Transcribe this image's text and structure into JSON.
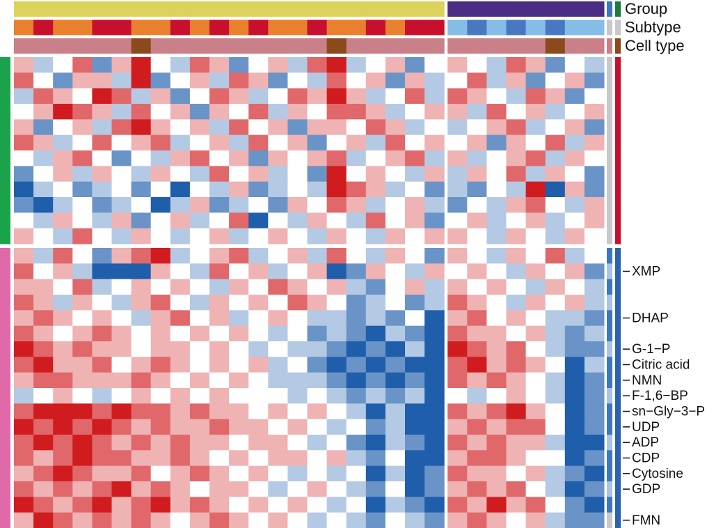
{
  "chart_data": {
    "type": "heatmap",
    "column_annotations": [
      {
        "name": "Group",
        "key_colors": [
          "#3b78c0",
          "#1b7a3e"
        ],
        "colors": [
          "#dcd35a",
          "#dcd35a",
          "#dcd35a",
          "#dcd35a",
          "#dcd35a",
          "#dcd35a",
          "#dcd35a",
          "#dcd35a",
          "#dcd35a",
          "#dcd35a",
          "#dcd35a",
          "#dcd35a",
          "#dcd35a",
          "#dcd35a",
          "#dcd35a",
          "#dcd35a",
          "#dcd35a",
          "#dcd35a",
          "#dcd35a",
          "#dcd35a",
          "#dcd35a",
          "#dcd35a",
          "#4b2d86",
          "#4b2d86",
          "#4b2d86",
          "#4b2d86",
          "#4b2d86",
          "#4b2d86",
          "#4b2d86",
          "#4b2d86"
        ]
      },
      {
        "name": "Subtype",
        "key_colors": [
          "#c8c8c8",
          "#c8c8c8"
        ],
        "colors": [
          "#e8802e",
          "#c8102e",
          "#e8802e",
          "#e8802e",
          "#c8102e",
          "#c8102e",
          "#e8802e",
          "#e8802e",
          "#c8102e",
          "#e8802e",
          "#c8102e",
          "#e8802e",
          "#c8102e",
          "#e8802e",
          "#e8802e",
          "#c8102e",
          "#e8802e",
          "#e8802e",
          "#c8102e",
          "#e8802e",
          "#c8102e",
          "#c8102e",
          "#86bde6",
          "#4a78c0",
          "#86bde6",
          "#4a78c0",
          "#86bde6",
          "#4a78c0",
          "#86bde6",
          "#86bde6"
        ]
      },
      {
        "name": "Cell type",
        "key_colors": [
          "#c98088",
          "#8b4a1c"
        ],
        "colors": [
          "#c98088",
          "#c98088",
          "#c98088",
          "#c98088",
          "#c98088",
          "#c98088",
          "#8b4a1c",
          "#c98088",
          "#c98088",
          "#c98088",
          "#c98088",
          "#c98088",
          "#c98088",
          "#c98088",
          "#c98088",
          "#c98088",
          "#8b4a1c",
          "#c98088",
          "#c98088",
          "#c98088",
          "#c98088",
          "#c98088",
          "#c98088",
          "#c98088",
          "#c98088",
          "#c98088",
          "#c98088",
          "#8b4a1c",
          "#c98088",
          "#c98088"
        ]
      }
    ],
    "row_annotations": [
      {
        "colors": [
          "#1aa34a",
          "#1aa34a",
          "#1aa34a",
          "#1aa34a",
          "#1aa34a",
          "#1aa34a",
          "#1aa34a",
          "#1aa34a",
          "#1aa34a",
          "#1aa34a",
          "#1aa34a",
          "#1aa34a",
          "#e06aa8",
          "#e06aa8",
          "#e06aa8",
          "#e06aa8",
          "#e06aa8",
          "#e06aa8",
          "#e06aa8",
          "#e06aa8",
          "#e06aa8",
          "#e06aa8",
          "#e06aa8",
          "#e06aa8",
          "#e06aa8",
          "#e06aa8",
          "#e06aa8",
          "#e06aa8",
          "#e06aa8",
          "#e06aa8"
        ]
      },
      {
        "colors": [
          "#c8c8c8",
          "#c8c8c8",
          "#c8c8c8",
          "#c8c8c8",
          "#c8c8c8",
          "#c8c8c8",
          "#c8c8c8",
          "#c8c8c8",
          "#c8c8c8",
          "#c8c8c8",
          "#c8c8c8",
          "#c8c8c8",
          "#3b78c0",
          "#a9c4e4",
          "#3b78c0",
          "#a9c4e4",
          "#3b78c0",
          "#3b78c0",
          "#a9c4e4",
          "#3b78c0",
          "#3b78c0",
          "#a9c4e4",
          "#3b78c0",
          "#3b78c0",
          "#a9c4e4",
          "#3b78c0",
          "#3b78c0",
          "#a9c4e4",
          "#3b78c0",
          "#c8c8c8"
        ]
      },
      {
        "colors": [
          "#c8102e",
          "#c8102e",
          "#c8102e",
          "#c8102e",
          "#c8102e",
          "#c8102e",
          "#c8102e",
          "#c8102e",
          "#c8102e",
          "#c8102e",
          "#c8102e",
          "#c8102e",
          "#2b62ad",
          "#2b62ad",
          "#2b62ad",
          "#2b62ad",
          "#2b62ad",
          "#2b62ad",
          "#2b62ad",
          "#2b62ad",
          "#2b62ad",
          "#2b62ad",
          "#2b62ad",
          "#2b62ad",
          "#2b62ad",
          "#2b62ad",
          "#2b62ad",
          "#2b62ad",
          "#2b62ad",
          "#2b62ad"
        ]
      }
    ],
    "rows": [
      null,
      null,
      null,
      null,
      null,
      null,
      null,
      null,
      null,
      null,
      null,
      null,
      null,
      "XMP",
      null,
      null,
      "DHAP",
      null,
      "G-1−P",
      "Citric acid",
      "NMN",
      "F-1,6−BP",
      "sn−Gly−3−P",
      "UDP",
      "ADP",
      "CDP",
      "Cytosine",
      "GDP",
      null,
      "FMN"
    ],
    "color_low": "#1f5eab",
    "color_mid": "#ffffff",
    "color_high": "#d01c1f",
    "zlim": [
      -3,
      3
    ],
    "values": [
      [
        1,
        -1,
        0,
        2,
        -2,
        1,
        3,
        0,
        -1,
        2,
        1,
        -2,
        0,
        1,
        -1,
        2,
        3,
        -1,
        0,
        1,
        -2,
        0,
        1,
        0,
        -1,
        2,
        1,
        -2,
        0,
        -1
      ],
      [
        2,
        0,
        -2,
        1,
        1,
        -1,
        3,
        -2,
        0,
        1,
        -1,
        2,
        1,
        -2,
        0,
        -1,
        2,
        0,
        1,
        -2,
        1,
        -1,
        0,
        2,
        -1,
        1,
        -2,
        0,
        1,
        -2
      ],
      [
        -1,
        2,
        1,
        0,
        3,
        2,
        -1,
        1,
        -2,
        0,
        2,
        1,
        -1,
        0,
        2,
        1,
        3,
        1,
        -1,
        0,
        2,
        -1,
        2,
        1,
        0,
        -1,
        2,
        1,
        -2,
        0
      ],
      [
        0,
        1,
        3,
        2,
        1,
        -1,
        2,
        0,
        1,
        -2,
        1,
        0,
        2,
        -1,
        1,
        0,
        2,
        2,
        1,
        -1,
        0,
        1,
        1,
        -1,
        2,
        0,
        1,
        -1,
        0,
        1
      ],
      [
        1,
        -2,
        0,
        1,
        -1,
        2,
        3,
        1,
        0,
        1,
        -1,
        2,
        0,
        1,
        -2,
        1,
        1,
        0,
        2,
        1,
        -1,
        0,
        -1,
        0,
        1,
        2,
        -1,
        0,
        1,
        -2
      ],
      [
        2,
        1,
        -1,
        0,
        2,
        0,
        1,
        2,
        -1,
        0,
        1,
        -1,
        2,
        0,
        1,
        -2,
        0,
        1,
        -1,
        2,
        0,
        1,
        0,
        1,
        -2,
        1,
        0,
        2,
        -1,
        1
      ],
      [
        0,
        -1,
        1,
        2,
        0,
        -2,
        0,
        -1,
        1,
        2,
        0,
        1,
        -2,
        1,
        0,
        1,
        2,
        -1,
        0,
        1,
        2,
        -1,
        1,
        -1,
        0,
        1,
        2,
        -1,
        1,
        0
      ],
      [
        -2,
        0,
        1,
        -1,
        1,
        0,
        -1,
        1,
        0,
        -1,
        2,
        0,
        1,
        -1,
        0,
        -2,
        3,
        0,
        1,
        0,
        -1,
        1,
        -1,
        1,
        0,
        2,
        -1,
        1,
        0,
        -2
      ],
      [
        -3,
        -1,
        0,
        -2,
        -1,
        0,
        -2,
        0,
        -3,
        0,
        -1,
        1,
        -2,
        -1,
        0,
        -1,
        3,
        2,
        1,
        -1,
        0,
        -2,
        -1,
        -2,
        0,
        -1,
        3,
        -3,
        1,
        -2
      ],
      [
        -2,
        -3,
        -1,
        0,
        -2,
        -1,
        0,
        -3,
        -1,
        1,
        -2,
        -1,
        0,
        -2,
        1,
        0,
        2,
        1,
        -1,
        0,
        1,
        -1,
        -2,
        0,
        -1,
        1,
        2,
        0,
        -1,
        1
      ],
      [
        0,
        -1,
        1,
        0,
        -1,
        1,
        -2,
        0,
        1,
        -1,
        0,
        2,
        -3,
        0,
        -1,
        1,
        0,
        -1,
        2,
        0,
        1,
        -2,
        0,
        1,
        -1,
        0,
        1,
        -1,
        0,
        1
      ],
      [
        1,
        0,
        -1,
        2,
        0,
        -1,
        1,
        0,
        -1,
        0,
        1,
        -1,
        0,
        1,
        0,
        -1,
        1,
        0,
        -1,
        1,
        0,
        1,
        1,
        0,
        -1,
        1,
        0,
        -1,
        1,
        0
      ],
      [
        1,
        -1,
        2,
        0,
        -2,
        1,
        2,
        3,
        -1,
        0,
        1,
        2,
        -1,
        0,
        1,
        -1,
        2,
        0,
        -1,
        1,
        0,
        -2,
        1,
        0,
        -1,
        1,
        0,
        2,
        -1,
        0
      ],
      [
        2,
        0,
        1,
        -1,
        -3,
        -3,
        -3,
        1,
        0,
        -1,
        2,
        0,
        1,
        -1,
        0,
        1,
        -3,
        -2,
        1,
        0,
        -1,
        1,
        0,
        1,
        0,
        -1,
        1,
        0,
        1,
        -2
      ],
      [
        1,
        1,
        0,
        2,
        -1,
        0,
        1,
        0,
        1,
        0,
        -1,
        1,
        0,
        2,
        1,
        0,
        1,
        -1,
        -2,
        0,
        1,
        -1,
        1,
        0,
        1,
        0,
        -1,
        1,
        0,
        -1
      ],
      [
        2,
        1,
        -1,
        1,
        0,
        -1,
        1,
        2,
        0,
        -1,
        1,
        0,
        1,
        0,
        2,
        1,
        0,
        -2,
        -1,
        0,
        -2,
        -1,
        2,
        1,
        0,
        -1,
        1,
        0,
        1,
        -1
      ],
      [
        1,
        2,
        1,
        0,
        1,
        0,
        -1,
        1,
        2,
        0,
        1,
        -1,
        0,
        1,
        0,
        -1,
        -1,
        -2,
        -1,
        -2,
        0,
        -3,
        1,
        2,
        0,
        1,
        0,
        -1,
        -1,
        -2
      ],
      [
        2,
        1,
        0,
        1,
        2,
        1,
        0,
        1,
        0,
        1,
        0,
        1,
        0,
        -1,
        0,
        -2,
        -1,
        -2,
        -3,
        -1,
        -2,
        -3,
        2,
        1,
        1,
        0,
        1,
        -1,
        -2,
        -1
      ],
      [
        3,
        2,
        1,
        2,
        1,
        1,
        0,
        1,
        1,
        0,
        1,
        0,
        -1,
        0,
        -1,
        -1,
        -2,
        -3,
        -2,
        -3,
        -1,
        -3,
        3,
        2,
        1,
        2,
        0,
        -1,
        -2,
        -2
      ],
      [
        2,
        3,
        1,
        1,
        2,
        0,
        1,
        2,
        1,
        0,
        1,
        0,
        1,
        -1,
        0,
        -2,
        -3,
        -2,
        -3,
        -2,
        -3,
        -3,
        2,
        3,
        1,
        2,
        1,
        0,
        -3,
        -1
      ],
      [
        1,
        2,
        2,
        1,
        1,
        1,
        2,
        1,
        0,
        1,
        0,
        1,
        0,
        -1,
        -1,
        -1,
        -2,
        -3,
        -2,
        -3,
        -2,
        -3,
        2,
        1,
        2,
        1,
        0,
        -1,
        -3,
        -2
      ],
      [
        -1,
        0,
        1,
        0,
        -1,
        0,
        1,
        0,
        1,
        0,
        1,
        0,
        0,
        0,
        -1,
        0,
        -1,
        -2,
        -1,
        -2,
        -1,
        -3,
        0,
        -1,
        0,
        1,
        0,
        -1,
        -3,
        -2
      ],
      [
        2,
        3,
        3,
        3,
        2,
        3,
        2,
        2,
        1,
        2,
        1,
        1,
        0,
        1,
        0,
        1,
        0,
        -1,
        -3,
        -1,
        -3,
        -3,
        2,
        1,
        2,
        3,
        1,
        0,
        -3,
        -2
      ],
      [
        3,
        2,
        3,
        2,
        3,
        2,
        1,
        2,
        1,
        1,
        2,
        1,
        1,
        0,
        1,
        0,
        -1,
        0,
        -2,
        -1,
        -3,
        -3,
        1,
        2,
        1,
        2,
        2,
        0,
        -3,
        -2
      ],
      [
        2,
        3,
        2,
        3,
        2,
        1,
        2,
        1,
        2,
        1,
        1,
        0,
        1,
        1,
        0,
        -1,
        0,
        -2,
        -3,
        -1,
        -2,
        -3,
        2,
        1,
        2,
        1,
        1,
        -1,
        -3,
        -3
      ],
      [
        2,
        1,
        2,
        3,
        2,
        2,
        1,
        1,
        2,
        1,
        0,
        1,
        0,
        1,
        1,
        0,
        1,
        -1,
        -2,
        0,
        -3,
        -3,
        1,
        2,
        2,
        1,
        0,
        0,
        -3,
        -2
      ],
      [
        1,
        2,
        3,
        2,
        1,
        1,
        2,
        0,
        1,
        2,
        1,
        0,
        1,
        0,
        -1,
        0,
        -1,
        0,
        -3,
        -1,
        -3,
        -2,
        2,
        1,
        1,
        0,
        1,
        -1,
        -2,
        -3
      ],
      [
        2,
        1,
        2,
        1,
        2,
        3,
        1,
        2,
        1,
        0,
        1,
        1,
        0,
        -1,
        0,
        1,
        0,
        -1,
        -2,
        0,
        -3,
        -2,
        1,
        2,
        1,
        2,
        0,
        -1,
        -3,
        -2
      ],
      [
        3,
        2,
        1,
        2,
        3,
        1,
        2,
        3,
        1,
        2,
        1,
        0,
        1,
        0,
        1,
        0,
        -1,
        0,
        -3,
        -1,
        -2,
        -3,
        2,
        1,
        3,
        1,
        2,
        0,
        -2,
        -3
      ],
      [
        1,
        3,
        2,
        1,
        2,
        1,
        2,
        1,
        0,
        1,
        2,
        1,
        0,
        1,
        0,
        -1,
        0,
        -1,
        -2,
        0,
        -1,
        -2,
        1,
        2,
        1,
        0,
        1,
        -1,
        -2,
        -2
      ]
    ]
  }
}
